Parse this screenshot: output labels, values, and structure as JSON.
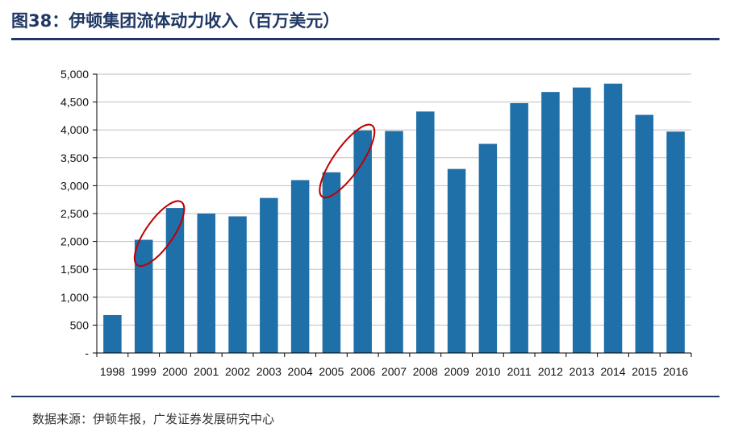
{
  "title": "图38：伊顿集团流体动力收入（百万美元）",
  "source": "数据来源：伊顿年报，广发证券发展研究中心",
  "colors": {
    "bar": "#1f6fa8",
    "grid": "#bfbfbf",
    "axis": "#000000",
    "highlight": "#c00000",
    "rule": "#1f3864"
  },
  "chart_data": {
    "type": "bar",
    "title": "伊顿集团流体动力收入（百万美元）",
    "xlabel": "",
    "ylabel": "",
    "ylim": [
      0,
      5000
    ],
    "yticks": [
      0,
      500,
      1000,
      1500,
      2000,
      2500,
      3000,
      3500,
      4000,
      4500,
      5000
    ],
    "ytick_labels": [
      "-",
      "500",
      "1,000",
      "1,500",
      "2,000",
      "2,500",
      "3,000",
      "3,500",
      "4,000",
      "4,500",
      "5,000"
    ],
    "grid": true,
    "categories": [
      "1998",
      "1999",
      "2000",
      "2001",
      "2002",
      "2003",
      "2004",
      "2005",
      "2006",
      "2007",
      "2008",
      "2009",
      "2010",
      "2011",
      "2012",
      "2013",
      "2014",
      "2015",
      "2016"
    ],
    "values": [
      680,
      2030,
      2600,
      2500,
      2450,
      2780,
      3100,
      3240,
      3990,
      3980,
      4330,
      3300,
      3750,
      4480,
      4680,
      4760,
      4830,
      4270,
      3970
    ],
    "annotations": [
      {
        "type": "ellipse",
        "between": [
          "1999",
          "2000"
        ],
        "color": "#c00000"
      },
      {
        "type": "ellipse",
        "between": [
          "2005",
          "2006"
        ],
        "color": "#c00000"
      }
    ]
  }
}
